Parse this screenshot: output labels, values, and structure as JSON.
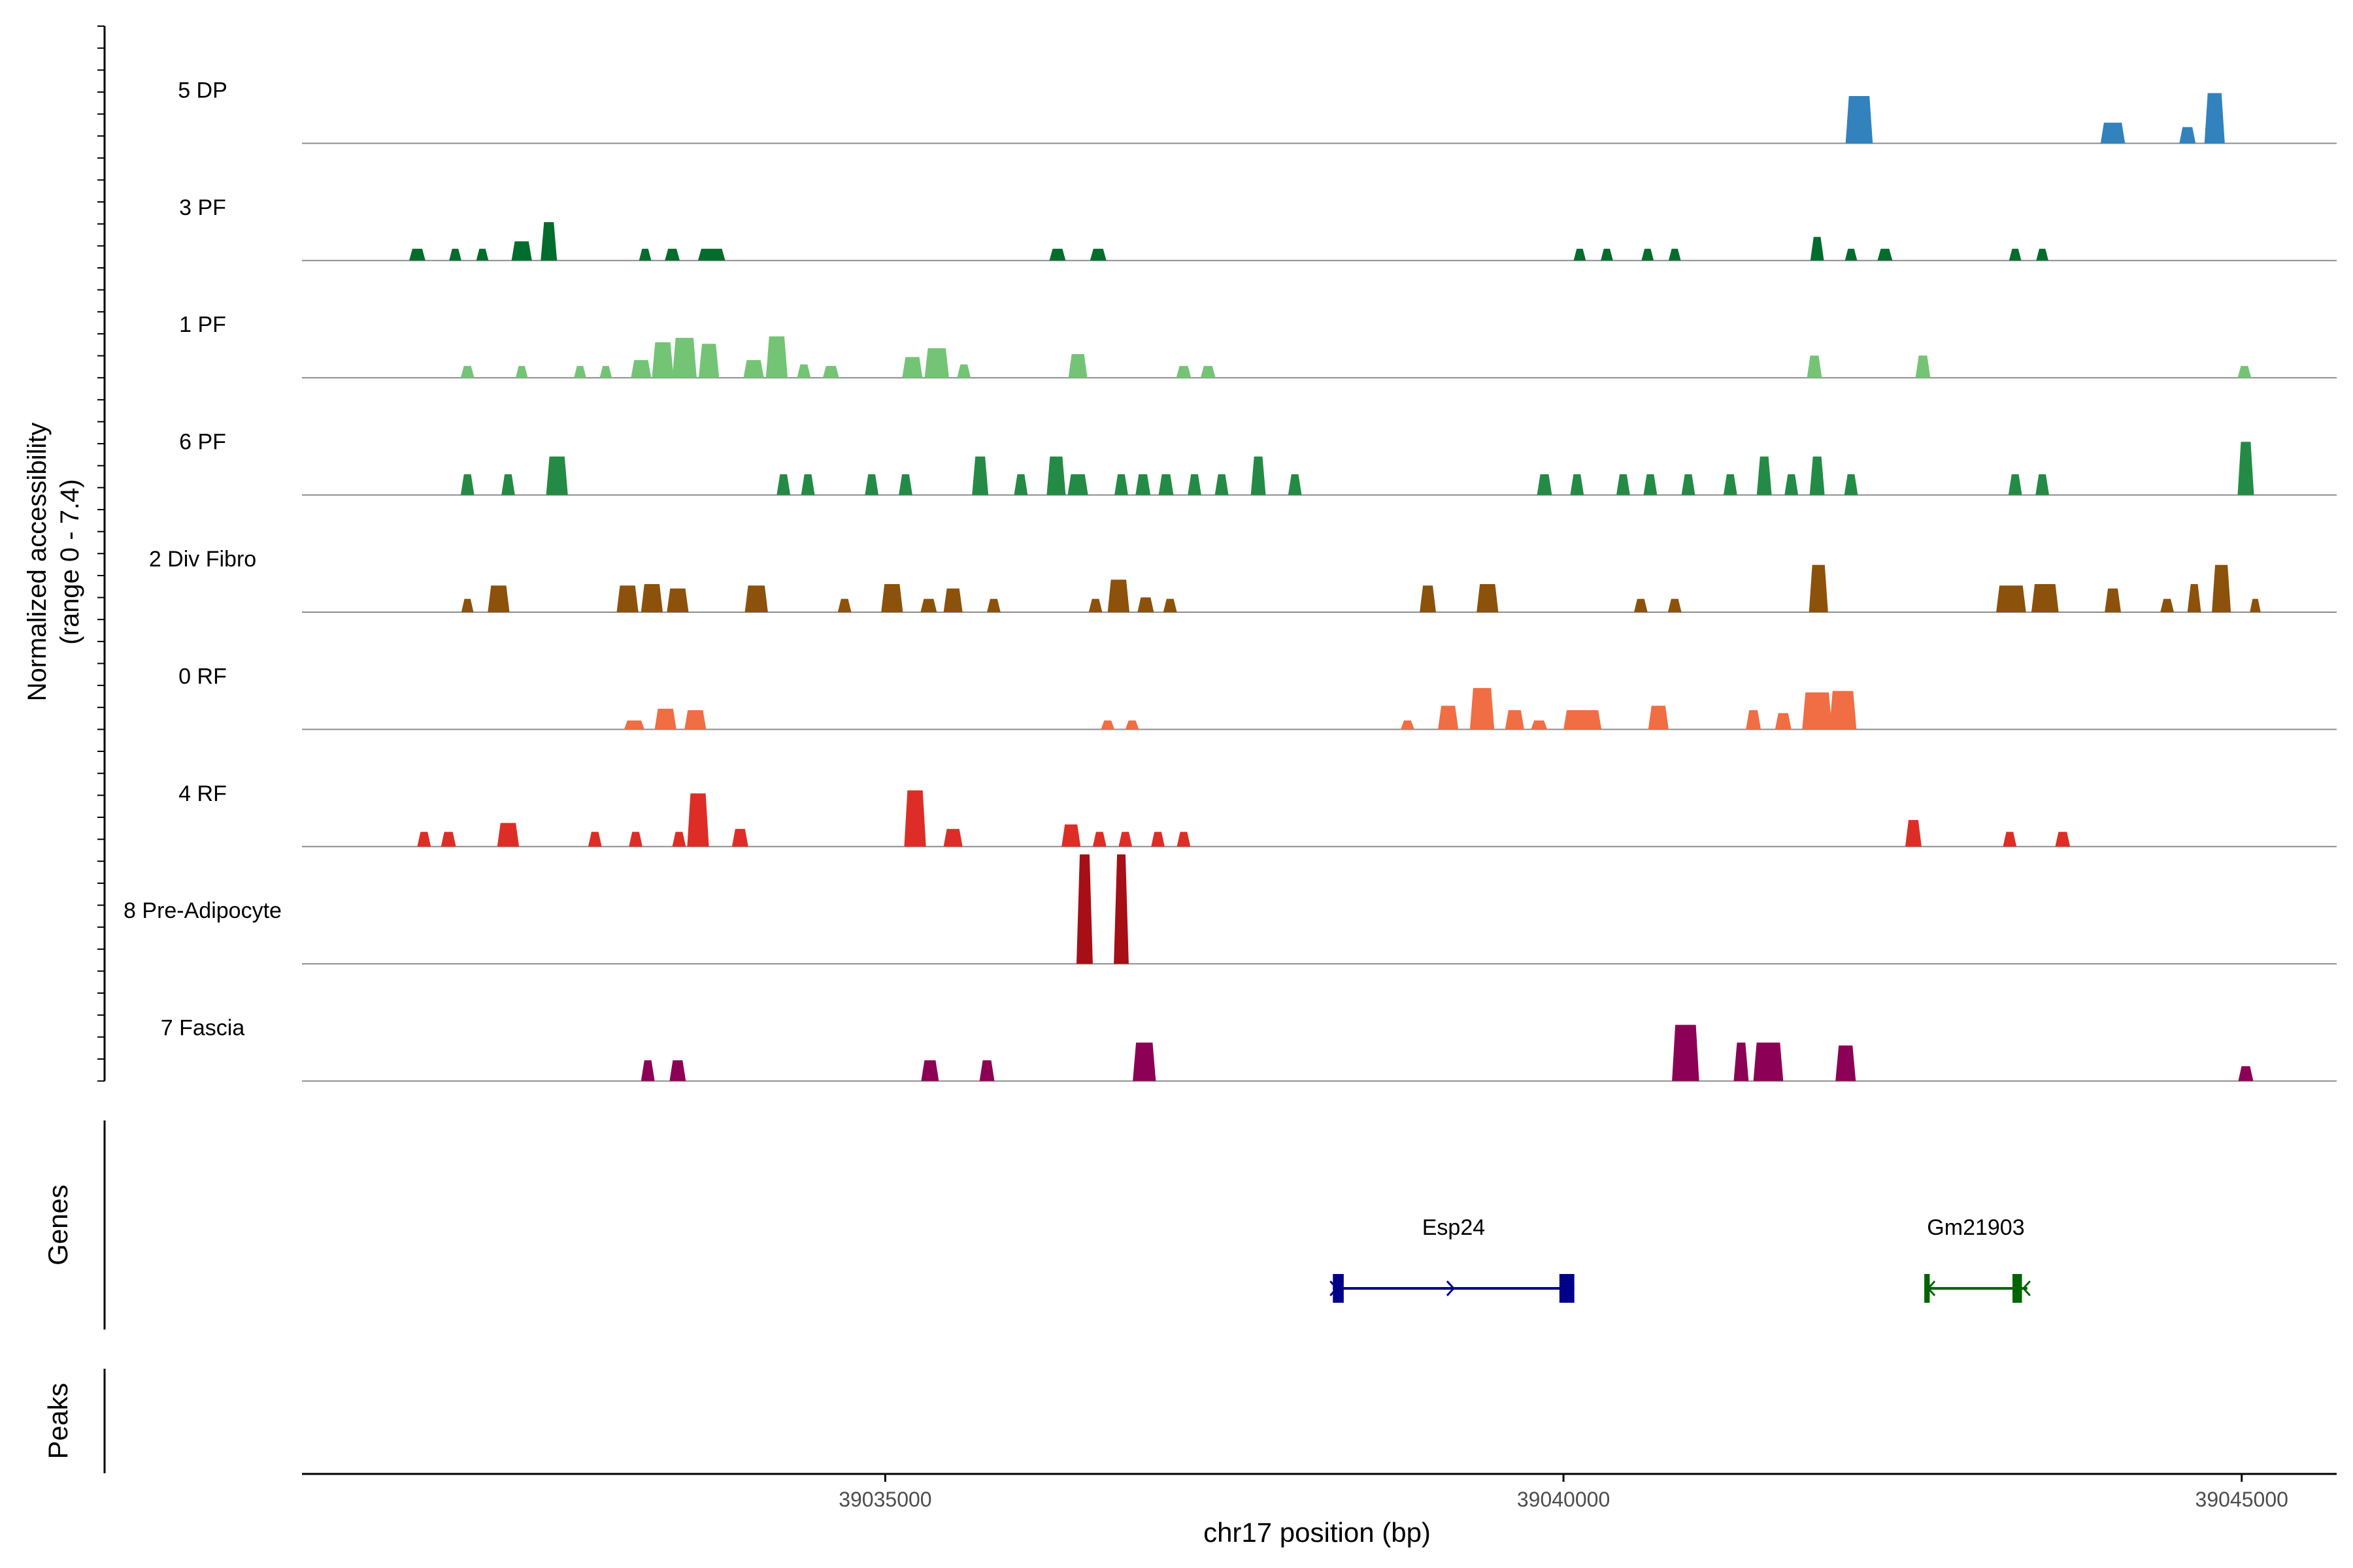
{
  "chart_data": {
    "type": "area",
    "title": "",
    "xlabel": "chr17 position (bp)",
    "ylabel_line1": "Normalized accessibility",
    "ylabel_line2": "(range 0 - 7.4)",
    "y_range": [
      0,
      7.4
    ],
    "x_range": [
      39030700,
      39045700
    ],
    "x_ticks": [
      {
        "value": 39035000,
        "label": "39035000"
      },
      {
        "value": 39040000,
        "label": "39040000"
      },
      {
        "value": 39045000,
        "label": "39045000"
      }
    ],
    "panel_labels": {
      "genes": "Genes",
      "peaks": "Peaks"
    },
    "tracks": [
      {
        "name": "5 DP",
        "color": "#3182BD",
        "peaks": [
          [
            39042180,
            200,
            3.2
          ],
          [
            39044050,
            180,
            1.4
          ],
          [
            39044600,
            120,
            1.1
          ],
          [
            39044800,
            150,
            3.4
          ]
        ]
      },
      {
        "name": "3 PF",
        "color": "#006D2C",
        "peaks": [
          [
            39031550,
            120,
            0.8
          ],
          [
            39031830,
            90,
            0.8
          ],
          [
            39032030,
            90,
            0.8
          ],
          [
            39032320,
            150,
            1.3
          ],
          [
            39032520,
            120,
            2.6
          ],
          [
            39033230,
            90,
            0.8
          ],
          [
            39033430,
            110,
            0.8
          ],
          [
            39033720,
            200,
            0.8
          ],
          [
            39036270,
            120,
            0.8
          ],
          [
            39036570,
            120,
            0.8
          ],
          [
            39040120,
            90,
            0.8
          ],
          [
            39040320,
            90,
            0.8
          ],
          [
            39040620,
            90,
            0.8
          ],
          [
            39040820,
            90,
            0.8
          ],
          [
            39041870,
            100,
            1.6
          ],
          [
            39042120,
            90,
            0.8
          ],
          [
            39042370,
            110,
            0.8
          ],
          [
            39043330,
            90,
            0.8
          ],
          [
            39043530,
            90,
            0.8
          ]
        ]
      },
      {
        "name": "1 PF",
        "color": "#74C476",
        "peaks": [
          [
            39031920,
            100,
            0.8
          ],
          [
            39032320,
            90,
            0.8
          ],
          [
            39032750,
            90,
            0.8
          ],
          [
            39032940,
            90,
            0.8
          ],
          [
            39033200,
            150,
            1.2
          ],
          [
            39033360,
            160,
            2.4
          ],
          [
            39033520,
            180,
            2.7
          ],
          [
            39033700,
            150,
            2.3
          ],
          [
            39034030,
            150,
            1.2
          ],
          [
            39034200,
            160,
            2.8
          ],
          [
            39034400,
            100,
            0.9
          ],
          [
            39034600,
            120,
            0.8
          ],
          [
            39035200,
            150,
            1.4
          ],
          [
            39035380,
            180,
            2.0
          ],
          [
            39035580,
            100,
            0.9
          ],
          [
            39036420,
            140,
            1.6
          ],
          [
            39037200,
            110,
            0.8
          ],
          [
            39037380,
            110,
            0.8
          ],
          [
            39041850,
            110,
            1.5
          ],
          [
            39042650,
            110,
            1.5
          ],
          [
            39045020,
            100,
            0.8
          ]
        ]
      },
      {
        "name": "6 PF",
        "color": "#238B45",
        "peaks": [
          [
            39031920,
            100,
            1.4
          ],
          [
            39032220,
            100,
            1.4
          ],
          [
            39032580,
            160,
            2.6
          ],
          [
            39034250,
            100,
            1.4
          ],
          [
            39034430,
            100,
            1.4
          ],
          [
            39034900,
            100,
            1.4
          ],
          [
            39035150,
            100,
            1.4
          ],
          [
            39035700,
            120,
            2.6
          ],
          [
            39036000,
            100,
            1.4
          ],
          [
            39036260,
            140,
            2.6
          ],
          [
            39036420,
            150,
            1.4
          ],
          [
            39036740,
            100,
            1.4
          ],
          [
            39036900,
            110,
            1.4
          ],
          [
            39037070,
            110,
            1.4
          ],
          [
            39037280,
            100,
            1.4
          ],
          [
            39037480,
            100,
            1.4
          ],
          [
            39037750,
            110,
            2.6
          ],
          [
            39038020,
            100,
            1.4
          ],
          [
            39039860,
            110,
            1.4
          ],
          [
            39040100,
            100,
            1.4
          ],
          [
            39040440,
            100,
            1.4
          ],
          [
            39040640,
            100,
            1.4
          ],
          [
            39040920,
            100,
            1.4
          ],
          [
            39041230,
            100,
            1.4
          ],
          [
            39041480,
            110,
            2.6
          ],
          [
            39041680,
            100,
            1.4
          ],
          [
            39041870,
            110,
            2.6
          ],
          [
            39042120,
            100,
            1.4
          ],
          [
            39043330,
            100,
            1.4
          ],
          [
            39043530,
            100,
            1.4
          ],
          [
            39045030,
            120,
            3.6
          ]
        ]
      },
      {
        "name": "2 Div Fibro",
        "color": "#8C510A",
        "peaks": [
          [
            39031920,
            90,
            0.9
          ],
          [
            39032150,
            160,
            1.8
          ],
          [
            39033100,
            160,
            1.8
          ],
          [
            39033280,
            160,
            1.9
          ],
          [
            39033470,
            160,
            1.6
          ],
          [
            39034050,
            170,
            1.8
          ],
          [
            39034700,
            100,
            0.9
          ],
          [
            39035050,
            160,
            1.9
          ],
          [
            39035320,
            120,
            0.9
          ],
          [
            39035500,
            140,
            1.6
          ],
          [
            39035800,
            100,
            0.9
          ],
          [
            39036550,
            100,
            0.9
          ],
          [
            39036720,
            160,
            2.2
          ],
          [
            39036920,
            120,
            1.0
          ],
          [
            39037100,
            100,
            0.9
          ],
          [
            39039000,
            120,
            1.8
          ],
          [
            39039440,
            160,
            1.9
          ],
          [
            39040570,
            100,
            0.9
          ],
          [
            39040820,
            100,
            0.9
          ],
          [
            39041880,
            140,
            3.2
          ],
          [
            39043300,
            220,
            1.8
          ],
          [
            39043550,
            200,
            1.9
          ],
          [
            39044050,
            120,
            1.6
          ],
          [
            39044450,
            100,
            0.9
          ],
          [
            39044650,
            100,
            1.9
          ],
          [
            39044850,
            140,
            3.2
          ],
          [
            39045100,
            80,
            0.9
          ]
        ]
      },
      {
        "name": "0 RF",
        "color": "#F16D43",
        "peaks": [
          [
            39033150,
            150,
            0.6
          ],
          [
            39033380,
            160,
            1.4
          ],
          [
            39033600,
            160,
            1.3
          ],
          [
            39036640,
            100,
            0.6
          ],
          [
            39036820,
            100,
            0.6
          ],
          [
            39038850,
            100,
            0.6
          ],
          [
            39039150,
            150,
            1.6
          ],
          [
            39039400,
            180,
            2.8
          ],
          [
            39039640,
            140,
            1.3
          ],
          [
            39039820,
            120,
            0.6
          ],
          [
            39040140,
            280,
            1.3
          ],
          [
            39040700,
            150,
            1.6
          ],
          [
            39041400,
            110,
            1.3
          ],
          [
            39041620,
            120,
            1.1
          ],
          [
            39041870,
            220,
            2.5
          ],
          [
            39042060,
            200,
            2.6
          ]
        ]
      },
      {
        "name": "4 RF",
        "color": "#DE2D26",
        "peaks": [
          [
            39031600,
            100,
            1.0
          ],
          [
            39031780,
            110,
            1.0
          ],
          [
            39032220,
            160,
            1.6
          ],
          [
            39032860,
            100,
            1.0
          ],
          [
            39033160,
            100,
            1.0
          ],
          [
            39033480,
            100,
            1.0
          ],
          [
            39033620,
            160,
            3.6
          ],
          [
            39033930,
            120,
            1.2
          ],
          [
            39035220,
            160,
            3.8
          ],
          [
            39035500,
            140,
            1.2
          ],
          [
            39036370,
            140,
            1.5
          ],
          [
            39036580,
            100,
            1.0
          ],
          [
            39036770,
            100,
            1.0
          ],
          [
            39037010,
            100,
            1.0
          ],
          [
            39037200,
            100,
            1.0
          ],
          [
            39042580,
            120,
            1.8
          ],
          [
            39043290,
            100,
            1.0
          ],
          [
            39043680,
            110,
            1.0
          ]
        ]
      },
      {
        "name": "8 Pre-Adipocyte",
        "color": "#A50F15",
        "peaks": [
          [
            39036470,
            120,
            7.4
          ],
          [
            39036740,
            110,
            7.4
          ]
        ]
      },
      {
        "name": "7 Fascia",
        "color": "#8C0155",
        "peaks": [
          [
            39033250,
            100,
            1.4
          ],
          [
            39033470,
            120,
            1.4
          ],
          [
            39035330,
            130,
            1.4
          ],
          [
            39035750,
            110,
            1.4
          ],
          [
            39036910,
            170,
            2.6
          ],
          [
            39040900,
            200,
            3.8
          ],
          [
            39041310,
            110,
            2.6
          ],
          [
            39041510,
            220,
            2.6
          ],
          [
            39042080,
            150,
            2.4
          ],
          [
            39045030,
            110,
            1.0
          ]
        ]
      }
    ],
    "genes": [
      {
        "name": "Esp24",
        "color": "#00008B",
        "start": 39038300,
        "end": 39040080,
        "strand": "+",
        "exons": [
          [
            39038300,
            39038380
          ],
          [
            39039970,
            39040080
          ]
        ]
      },
      {
        "name": "Gm21903",
        "color": "#006400",
        "start": 39042660,
        "end": 39043420,
        "strand": "-",
        "exons": [
          [
            39042660,
            39042700
          ],
          [
            39043310,
            39043380
          ]
        ]
      }
    ]
  }
}
